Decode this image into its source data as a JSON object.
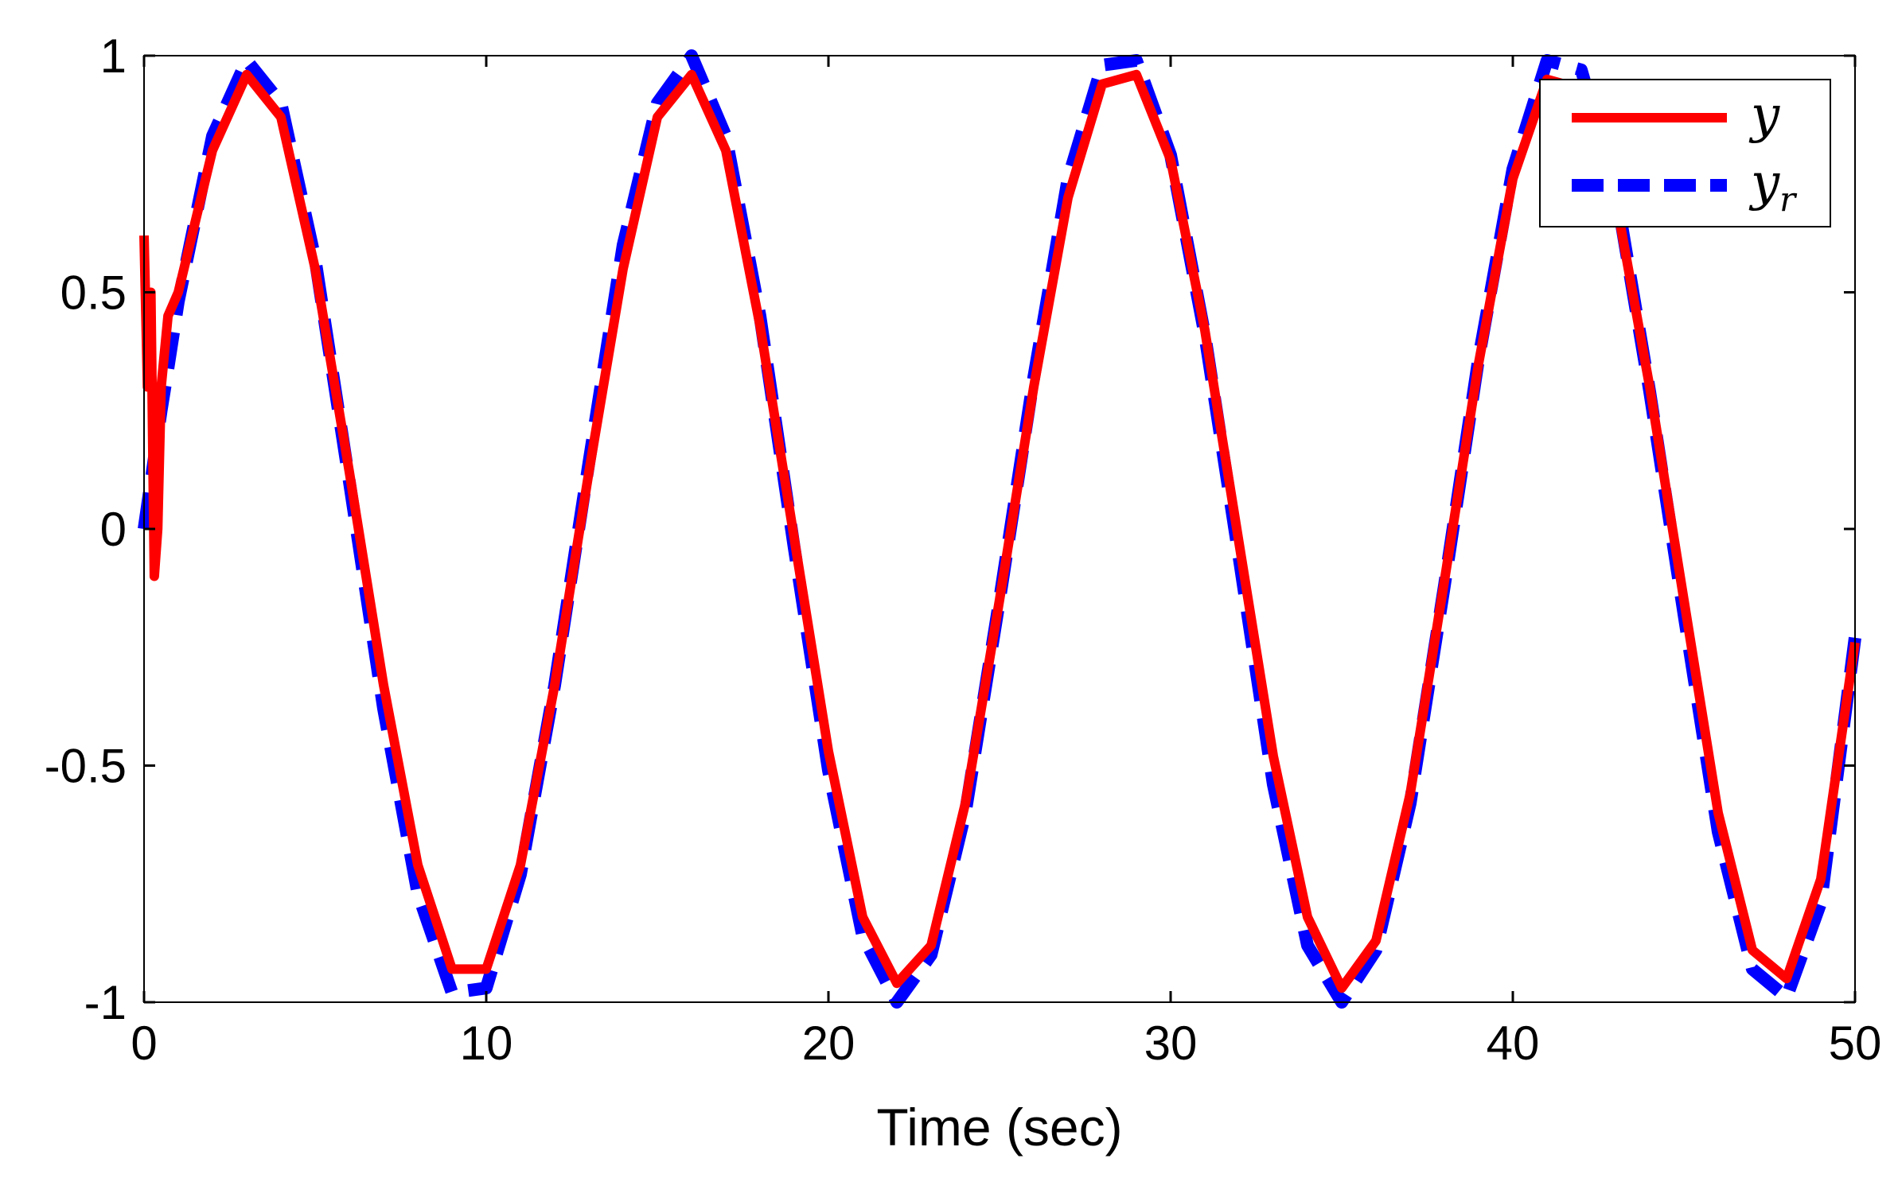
{
  "chart_data": {
    "type": "line",
    "title": "",
    "xlabel": "Time (sec)",
    "ylabel": "",
    "xlim": [
      0,
      50
    ],
    "ylim": [
      -1,
      1
    ],
    "x_ticks": [
      0,
      10,
      20,
      30,
      40,
      50
    ],
    "x_tick_labels": [
      "0",
      "10",
      "20",
      "30",
      "40",
      "50"
    ],
    "y_ticks": [
      -1,
      -0.5,
      0,
      0.5,
      1
    ],
    "y_tick_labels": [
      "-1",
      "-0.5",
      "0",
      "0.5",
      "1"
    ],
    "grid": false,
    "legend_position": "top-right",
    "x": [
      0,
      0.1,
      0.2,
      0.3,
      0.4,
      0.5,
      0.7,
      1,
      2,
      3,
      4,
      5,
      6,
      7,
      8,
      9,
      10,
      11,
      12,
      13,
      14,
      15,
      16,
      17,
      18,
      19,
      20,
      21,
      22,
      23,
      24,
      25,
      26,
      27,
      28,
      29,
      30,
      31,
      32,
      33,
      34,
      35,
      36,
      37,
      38,
      39,
      40,
      41,
      42,
      43,
      44,
      45,
      46,
      47,
      48,
      49,
      50
    ],
    "series": [
      {
        "name": "y",
        "color": "#ff0000",
        "style": "solid",
        "values": [
          0.62,
          0.3,
          0.5,
          -0.1,
          0.0,
          0.3,
          0.45,
          0.5,
          0.8,
          0.96,
          0.87,
          0.55,
          0.12,
          -0.33,
          -0.71,
          -0.93,
          -0.93,
          -0.71,
          -0.33,
          0.12,
          0.55,
          0.87,
          0.96,
          0.8,
          0.43,
          -0.02,
          -0.47,
          -0.82,
          -0.96,
          -0.88,
          -0.58,
          -0.15,
          0.3,
          0.7,
          0.94,
          0.96,
          0.78,
          0.42,
          -0.03,
          -0.48,
          -0.82,
          -0.97,
          -0.87,
          -0.56,
          -0.11,
          0.35,
          0.74,
          0.95,
          0.93,
          0.7,
          0.3,
          -0.15,
          -0.6,
          -0.89,
          -0.95,
          -0.74,
          -0.24
        ]
      },
      {
        "name": "y_r",
        "color": "#0000ff",
        "style": "dashed",
        "values": [
          0.0,
          0.05,
          0.1,
          0.15,
          0.2,
          0.25,
          0.34,
          0.48,
          0.83,
          0.99,
          0.9,
          0.57,
          0.1,
          -0.38,
          -0.77,
          -0.98,
          -0.97,
          -0.73,
          -0.33,
          0.14,
          0.6,
          0.9,
          1.0,
          0.83,
          0.45,
          -0.04,
          -0.51,
          -0.86,
          -1.0,
          -0.9,
          -0.6,
          -0.15,
          0.32,
          0.74,
          0.98,
          0.99,
          0.79,
          0.41,
          -0.06,
          -0.54,
          -0.88,
          -1.0,
          -0.89,
          -0.58,
          -0.12,
          0.36,
          0.76,
          0.99,
          0.97,
          0.72,
          0.29,
          -0.18,
          -0.64,
          -0.93,
          -0.99,
          -0.79,
          -0.23
        ]
      }
    ]
  },
  "legend": {
    "entries": [
      {
        "main": "y",
        "sub": ""
      },
      {
        "main": "y",
        "sub": "r"
      }
    ]
  }
}
